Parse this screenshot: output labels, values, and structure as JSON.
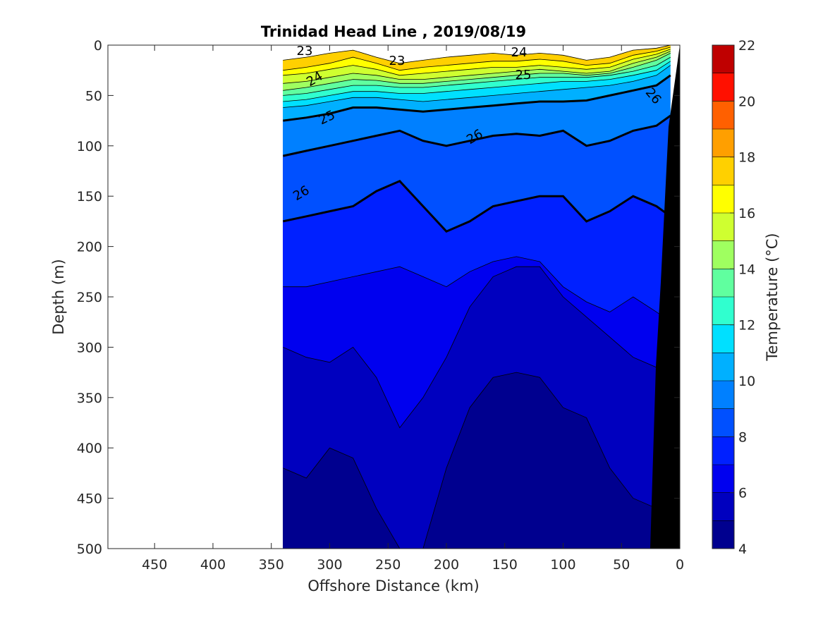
{
  "chart_data": {
    "type": "heatmap",
    "subtype": "filled-contour ocean section",
    "title": "Trinidad Head Line , 2019/08/19",
    "xlabel": "Offshore Distance (km)",
    "ylabel": "Depth (m)",
    "xlim": [
      490,
      0
    ],
    "x_reversed": true,
    "ylim": [
      0,
      500
    ],
    "y_reversed": true,
    "xticks": [
      450,
      400,
      350,
      300,
      250,
      200,
      150,
      100,
      50,
      0
    ],
    "yticks": [
      0,
      50,
      100,
      150,
      200,
      250,
      300,
      350,
      400,
      450,
      500
    ],
    "data_extent_km": [
      340,
      0
    ],
    "colorbar": {
      "label": "Temperature (°C)",
      "range": [
        4,
        22
      ],
      "ticks": [
        4,
        6,
        8,
        10,
        12,
        14,
        16,
        18,
        20,
        22
      ],
      "levels": [
        {
          "from": 4,
          "to": 5,
          "color": "#00008f"
        },
        {
          "from": 5,
          "to": 6,
          "color": "#0000bf"
        },
        {
          "from": 6,
          "to": 7,
          "color": "#0000ef"
        },
        {
          "from": 7,
          "to": 8,
          "color": "#0020ff"
        },
        {
          "from": 8,
          "to": 9,
          "color": "#0050ff"
        },
        {
          "from": 9,
          "to": 10,
          "color": "#0080ff"
        },
        {
          "from": 10,
          "to": 11,
          "color": "#00b0ff"
        },
        {
          "from": 11,
          "to": 12,
          "color": "#00e0ff"
        },
        {
          "from": 12,
          "to": 13,
          "color": "#30ffcf"
        },
        {
          "from": 13,
          "to": 14,
          "color": "#60ff9f"
        },
        {
          "from": 14,
          "to": 15,
          "color": "#9fff60"
        },
        {
          "from": 15,
          "to": 16,
          "color": "#cfff30"
        },
        {
          "from": 16,
          "to": 17,
          "color": "#ffff00"
        },
        {
          "from": 17,
          "to": 18,
          "color": "#ffd000"
        },
        {
          "from": 18,
          "to": 19,
          "color": "#ff9f00"
        },
        {
          "from": 19,
          "to": 20,
          "color": "#ff6000"
        },
        {
          "from": 20,
          "to": 21,
          "color": "#ff1000"
        },
        {
          "from": 21,
          "to": 22,
          "color": "#bf0000"
        }
      ]
    },
    "temperature_section": {
      "distance_km": [
        340,
        320,
        300,
        280,
        260,
        240,
        220,
        200,
        180,
        160,
        140,
        120,
        100,
        80,
        60,
        40,
        20,
        8
      ],
      "depth_m": [
        0,
        10,
        20,
        30,
        40,
        50,
        60,
        70,
        80,
        90,
        100,
        120,
        140,
        160,
        180,
        200,
        225,
        250,
        275,
        300,
        325,
        350,
        375,
        400,
        425,
        450,
        475,
        500
      ],
      "level_depths_m": {
        "18": [
          15,
          12,
          8,
          5,
          12,
          18,
          15,
          12,
          10,
          8,
          10,
          8,
          10,
          15,
          12,
          5,
          3,
          0
        ],
        "17": [
          25,
          22,
          18,
          12,
          18,
          25,
          22,
          20,
          18,
          16,
          16,
          14,
          16,
          20,
          18,
          10,
          6,
          2
        ],
        "16": [
          30,
          28,
          24,
          20,
          24,
          30,
          28,
          26,
          24,
          22,
          22,
          20,
          22,
          24,
          22,
          14,
          9,
          4
        ],
        "15": [
          38,
          36,
          32,
          28,
          30,
          34,
          34,
          32,
          30,
          28,
          26,
          24,
          26,
          28,
          26,
          18,
          12,
          6
        ],
        "14": [
          45,
          42,
          38,
          34,
          35,
          38,
          38,
          36,
          34,
          32,
          30,
          28,
          28,
          30,
          28,
          22,
          15,
          8
        ],
        "13": [
          50,
          48,
          44,
          40,
          40,
          42,
          42,
          40,
          38,
          36,
          34,
          32,
          32,
          32,
          30,
          26,
          20,
          12
        ],
        "12": [
          56,
          54,
          50,
          46,
          46,
          48,
          48,
          46,
          44,
          42,
          40,
          38,
          36,
          36,
          34,
          30,
          25,
          16
        ],
        "11": [
          62,
          60,
          56,
          52,
          52,
          54,
          56,
          54,
          52,
          50,
          48,
          46,
          44,
          42,
          40,
          36,
          30,
          20
        ],
        "10": [
          75,
          72,
          68,
          62,
          62,
          64,
          66,
          64,
          62,
          60,
          58,
          56,
          56,
          55,
          50,
          45,
          40,
          30
        ],
        "9": [
          110,
          105,
          100,
          95,
          90,
          85,
          95,
          100,
          95,
          90,
          88,
          90,
          85,
          100,
          95,
          85,
          80,
          70
        ],
        "8": [
          175,
          170,
          165,
          160,
          145,
          135,
          160,
          185,
          175,
          160,
          155,
          150,
          150,
          175,
          165,
          150,
          160,
          170
        ],
        "7": [
          240,
          240,
          235,
          230,
          225,
          220,
          230,
          240,
          225,
          215,
          210,
          215,
          240,
          255,
          265,
          250,
          265,
          275
        ],
        "6": [
          300,
          310,
          315,
          300,
          330,
          380,
          350,
          310,
          260,
          230,
          220,
          220,
          250,
          270,
          290,
          310,
          320,
          330
        ],
        "5": [
          420,
          430,
          400,
          410,
          460,
          500,
          500,
          420,
          360,
          330,
          325,
          330,
          360,
          370,
          420,
          450,
          460,
          480
        ]
      }
    },
    "contour_labels": [
      "23",
      "23",
      "24",
      "24",
      "25",
      "25",
      "26",
      "26",
      "26"
    ],
    "bathymetry": "black seafloor wedge near 0-25 km offshore"
  }
}
